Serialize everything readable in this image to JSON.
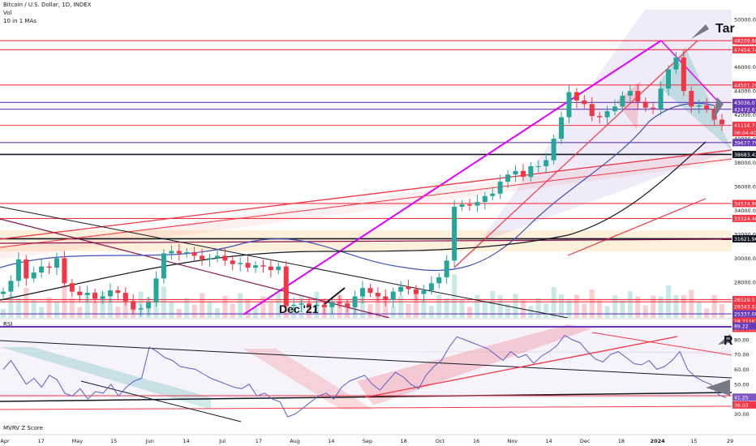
{
  "header": {
    "symbol": "Bitcoin / U.S. Dollar, 1D, INDEX",
    "vol": "Vol",
    "ma": "10 in 1 MAs"
  },
  "annotations": {
    "tar": "Tar",
    "dec21": "Dec '21",
    "r": "R"
  },
  "panes": {
    "rsi": "RSI",
    "mvrv": "MVRV Z Score"
  },
  "colors": {
    "red_line": "#f23645",
    "purple_line": "#7e57c2",
    "magenta": "#e100ff",
    "axis_tag_red": "#f23645",
    "axis_tag_purple": "#673ab7",
    "text": "#131722",
    "grid": "#f0f3fa"
  },
  "chart_data": [
    {
      "type": "candlestick",
      "title": "Bitcoin / U.S. Dollar, 1D, INDEX",
      "x_ticks": [
        "Apr",
        "17",
        "May",
        "15",
        "Jun",
        "14",
        "Jul",
        "17",
        "Aug",
        "14",
        "Sep",
        "18",
        "Oct",
        "16",
        "Nov",
        "14",
        "Dec",
        "18",
        "2024",
        "15",
        "29"
      ],
      "y_ticks": [
        28000,
        30000,
        32000,
        34000,
        36000,
        38000,
        40000,
        42000,
        44000,
        46000,
        48000,
        50000
      ],
      "ylim": [
        25000,
        50800
      ],
      "price_levels": [
        {
          "value": "48209.88",
          "color": "#f23645"
        },
        {
          "value": "47454.74",
          "color": "#f23645"
        },
        {
          "value": "44501.29",
          "color": "#f23645"
        },
        {
          "value": "43036.07",
          "color": "#673ab7"
        },
        {
          "value": "42472.61",
          "color": "#673ab7"
        },
        {
          "value": "41116.71",
          "color": "#f23645"
        },
        {
          "value": "06:04:40",
          "color": "#f23645"
        },
        {
          "value": "39677.79",
          "color": "#673ab7"
        },
        {
          "value": "38683.43",
          "color": "#131722"
        },
        {
          "value": "34574.90",
          "color": "#f23645"
        },
        {
          "value": "33324.46",
          "color": "#f23645"
        },
        {
          "value": "31621.96",
          "color": "#131722"
        },
        {
          "value": "26529.57",
          "color": "#f23645"
        },
        {
          "value": "26343.92",
          "color": "#f23645"
        },
        {
          "value": "25337.00",
          "color": "#673ab7"
        },
        {
          "value": "18.711K",
          "color": "#f23645"
        },
        {
          "value": "17.778K",
          "color": "#f23645"
        }
      ],
      "close_series": [
        27200,
        28100,
        29900,
        28300,
        28800,
        29300,
        29200,
        30000,
        27900,
        27200,
        26900,
        27100,
        26600,
        26800,
        27300,
        27100,
        26400,
        25700,
        25800,
        26300,
        28300,
        30400,
        30600,
        30400,
        30500,
        30200,
        29900,
        30000,
        30200,
        29800,
        29500,
        29600,
        29200,
        29400,
        29300,
        29000,
        29300,
        26000,
        26100,
        26200,
        26000,
        26100,
        25900,
        26300,
        26200,
        25900,
        26800,
        27500,
        27100,
        26800,
        26500,
        27200,
        27600,
        27400,
        27000,
        27300,
        27900,
        28400,
        29800,
        34300,
        34500,
        34400,
        34700,
        35200,
        35400,
        36400,
        37000,
        37300,
        36800,
        37700,
        37700,
        38200,
        40000,
        41800,
        43900,
        43200,
        42900,
        41900,
        41800,
        42300,
        42700,
        43600,
        44000,
        43100,
        42600,
        42500,
        44200,
        45800,
        46800,
        44000,
        42700,
        42800,
        42500,
        41600,
        41200
      ]
    },
    {
      "type": "line",
      "title": "RSI",
      "y_ticks": [
        30,
        40,
        50,
        60,
        70,
        80
      ],
      "ylim": [
        22,
        92
      ],
      "levels": [
        {
          "value": "89.22",
          "color": "#673ab7"
        },
        {
          "value": "41.25",
          "color": "#7e57c2"
        },
        {
          "value": "36.03",
          "color": "#f23645"
        }
      ],
      "series": [
        {
          "values": [
            60,
            66,
            58,
            50,
            54,
            48,
            56,
            53,
            44,
            42,
            47,
            40,
            45,
            44,
            50,
            42,
            48,
            52,
            54,
            75,
            72,
            68,
            66,
            62,
            61,
            60,
            57,
            54,
            52,
            50,
            48,
            47,
            50,
            42,
            44,
            40,
            38,
            28,
            30,
            34,
            38,
            42,
            44,
            40,
            48,
            52,
            54,
            56,
            50,
            46,
            52,
            58,
            55,
            50,
            47,
            56,
            62,
            66,
            75,
            82,
            80,
            78,
            76,
            74,
            70,
            66,
            72,
            68,
            70,
            64,
            69,
            72,
            76,
            83,
            80,
            78,
            72,
            67,
            65,
            70,
            72,
            68,
            64,
            63,
            66,
            60,
            62,
            66,
            72,
            60,
            55,
            52,
            50,
            43,
            41
          ]
        }
      ]
    }
  ]
}
